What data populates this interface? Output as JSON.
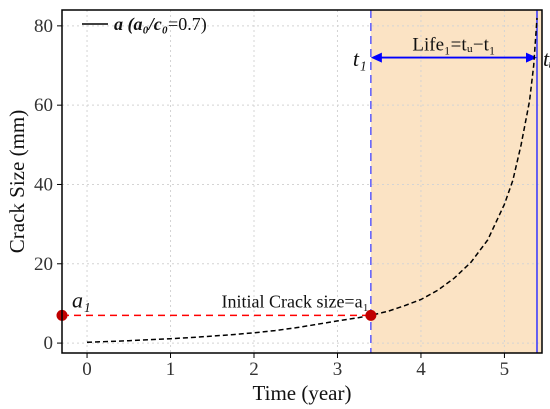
{
  "chart_data": {
    "type": "line",
    "xlabel": "Time (year)",
    "ylabel": "Crack Size (mm)",
    "xlim": [
      -0.3,
      5.45
    ],
    "ylim": [
      -2.5,
      84
    ],
    "x_ticks": [
      0,
      1,
      2,
      3,
      4,
      5
    ],
    "y_ticks": [
      0,
      20,
      40,
      60,
      80
    ],
    "grid": true,
    "legend": {
      "placement": "top-left",
      "entries": [
        {
          "symbol": "a",
          "ratio": "a₀/c₀",
          "value": "=0.7",
          "line_style": "dashed",
          "color": "#000000"
        }
      ]
    },
    "series": [
      {
        "name": "a (a₀/c₀=0.7)",
        "color": "#000000",
        "line_style": "dashed",
        "x": [
          0,
          0.25,
          0.5,
          0.75,
          1.0,
          1.25,
          1.5,
          1.75,
          2.0,
          2.25,
          2.5,
          2.75,
          3.0,
          3.25,
          3.4,
          3.6,
          3.8,
          4.0,
          4.2,
          4.4,
          4.6,
          4.8,
          5.0,
          5.1,
          5.2,
          5.3,
          5.35,
          5.39
        ],
        "y": [
          0.2,
          0.4,
          0.6,
          0.85,
          1.1,
          1.4,
          1.75,
          2.15,
          2.6,
          3.15,
          3.85,
          4.7,
          5.6,
          6.4,
          7.0,
          8.0,
          9.4,
          11.0,
          13.3,
          16.4,
          20.4,
          26.0,
          35.0,
          41.0,
          50.0,
          61.0,
          70.0,
          82.0
        ]
      }
    ],
    "points": [
      {
        "label": "a₁",
        "x": -0.3,
        "y": 7,
        "color": "#c00000"
      },
      {
        "label": "Initial Crack size=a₁",
        "x": 3.4,
        "y": 7,
        "color": "#c00000"
      }
    ],
    "reference_lines": {
      "initial_crack_line": {
        "y": 7,
        "x_from": -0.3,
        "x_to": 3.4,
        "color": "#ff0000",
        "style": "dashed"
      },
      "t1_line": {
        "x": 3.4,
        "color": "#3333ff",
        "style": "dashed"
      },
      "tu_line": {
        "x": 5.39,
        "color": "#3333ff",
        "style": "solid"
      }
    },
    "shaded_region": {
      "x_from": 3.4,
      "x_to": 5.45,
      "color": "#fbe3c4"
    },
    "life_arrow": {
      "x_from": 3.4,
      "x_to": 5.39,
      "y": 72,
      "color": "#0000ff",
      "text": "Life₁=tᵤ−t₁"
    },
    "annotations": {
      "t1": "t₁",
      "tu": "tᵤ",
      "a1": "a₁",
      "initial_crack": "Initial Crack size=a₁"
    },
    "colors": {
      "curve": "#000000",
      "marker": "#c00000",
      "red_dash": "#ff0000",
      "blue_line": "#3333ff",
      "arrow": "#0000ff",
      "grid": "#d4d4d4",
      "shade": "#fbe3c4"
    }
  }
}
